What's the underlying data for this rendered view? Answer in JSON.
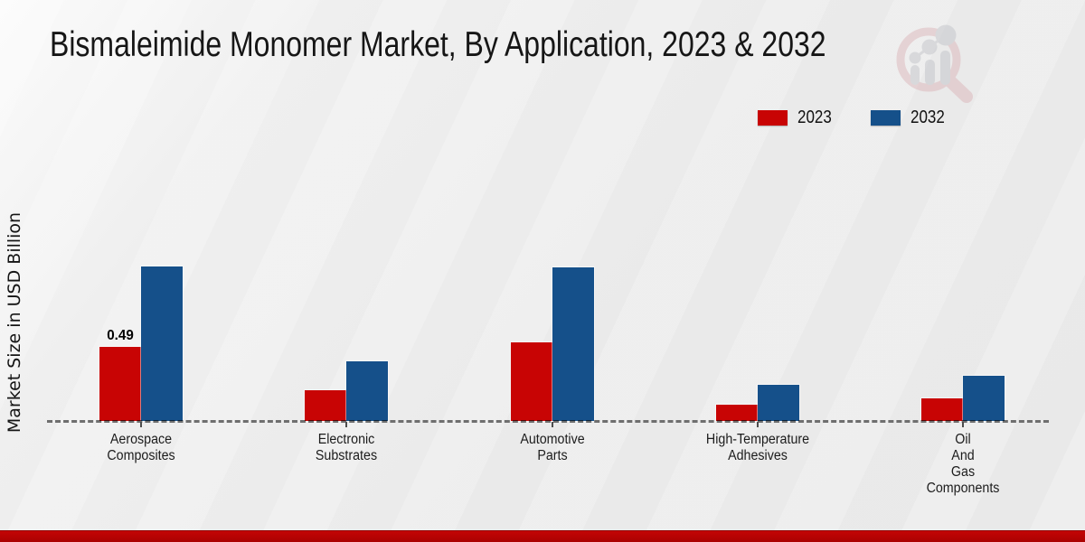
{
  "title": "Bismaleimide Monomer Market, By Application, 2023 & 2032",
  "chart_data": {
    "type": "bar",
    "title": "Bismaleimide Monomer Market, By Application, 2023 & 2032",
    "xlabel": "",
    "ylabel": "Market Size in USD Billion",
    "ylim": [
      0,
      1.1
    ],
    "grid": false,
    "legend_position": "top-right",
    "baseline_style": "dashed-zero-line",
    "categories": [
      "Aerospace Composites",
      "Electronic Substrates",
      "Automotive Parts",
      "High-Temperature Adhesives",
      "Oil And Gas Components"
    ],
    "category_lines": [
      [
        "Aerospace",
        "Composites"
      ],
      [
        "Electronic",
        "Substrates"
      ],
      [
        "Automotive",
        "Parts"
      ],
      [
        "High-Temperature",
        "Adhesives"
      ],
      [
        "Oil",
        "And",
        "Gas",
        "Components"
      ]
    ],
    "series": [
      {
        "name": "2023",
        "color": "#c80404",
        "values": [
          0.49,
          0.2,
          0.52,
          0.11,
          0.15
        ]
      },
      {
        "name": "2032",
        "color": "#15508a",
        "values": [
          1.02,
          0.39,
          1.01,
          0.24,
          0.3
        ]
      }
    ],
    "data_labels": [
      {
        "series": "2023",
        "category": "Aerospace Composites",
        "text": "0.49"
      }
    ]
  },
  "footer": {
    "accent_color": "#b40303"
  },
  "watermark": {
    "icon": "magnifier-bar-chart-logo",
    "ring_color": "#dcb6ba",
    "glyph_color": "#c2c4c9"
  }
}
